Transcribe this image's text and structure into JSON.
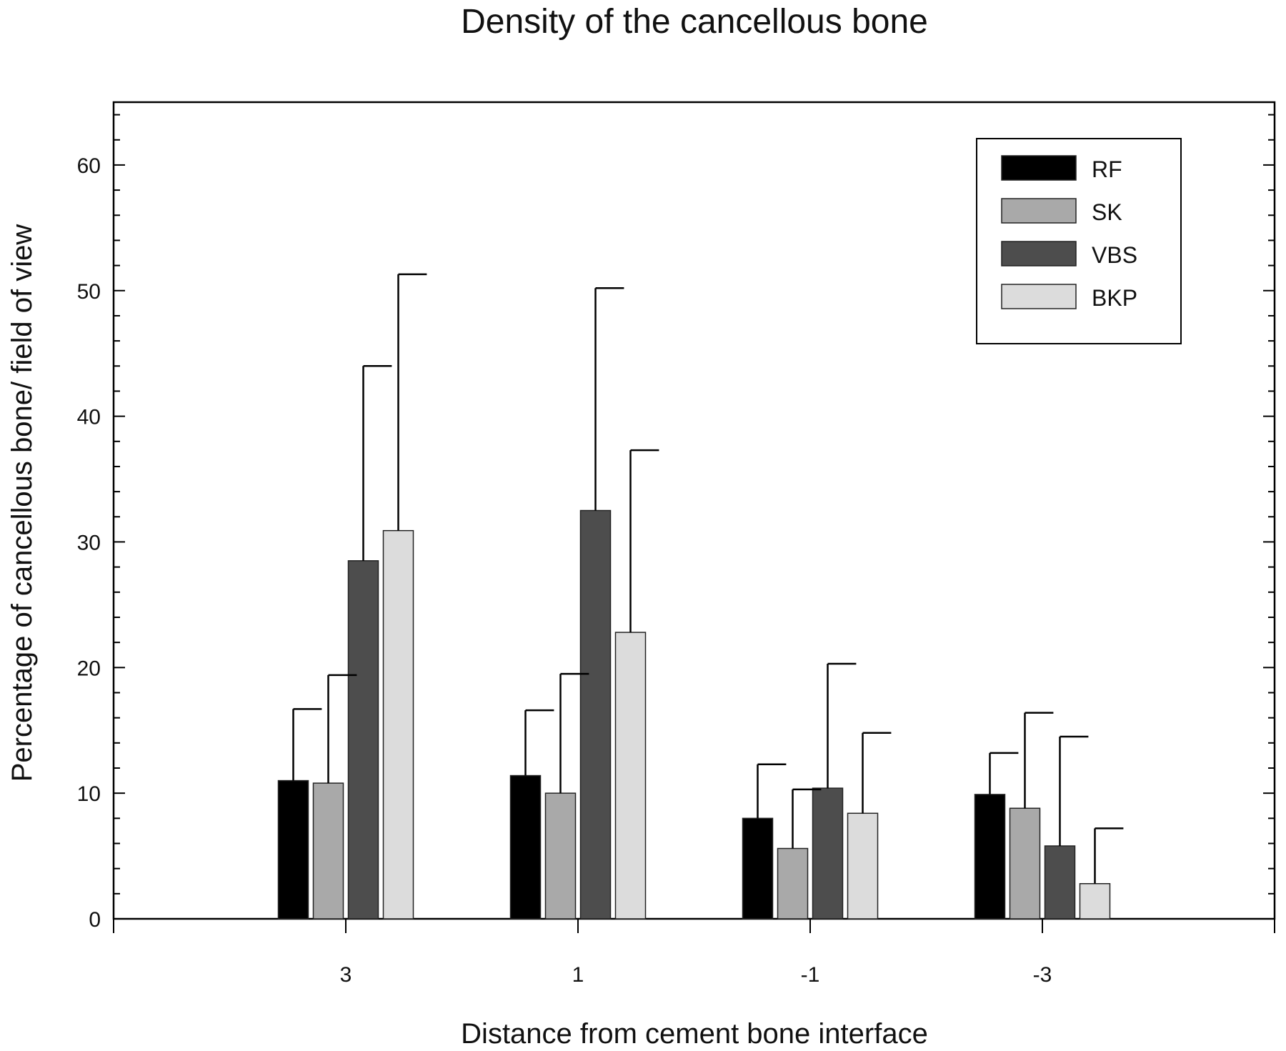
{
  "chart_data": {
    "type": "bar",
    "title": "Density of the cancellous bone",
    "xlabel": "Distance from cement bone interface",
    "ylabel": "Percentage of cancellous bone/ field of view",
    "categories": [
      "3",
      "1",
      "-1",
      "-3"
    ],
    "ylim": [
      0,
      65
    ],
    "yticks": [
      0,
      10,
      20,
      30,
      40,
      50,
      60
    ],
    "legend_position": "top-right",
    "grid": false,
    "error_bars": "upper",
    "series": [
      {
        "name": "RF",
        "color": "#000000",
        "values": [
          11.0,
          11.4,
          8.0,
          9.9
        ],
        "error": [
          5.7,
          5.2,
          4.3,
          3.3
        ]
      },
      {
        "name": "SK",
        "color": "#a9a9a9",
        "values": [
          10.8,
          10.0,
          5.6,
          8.8
        ],
        "error": [
          8.6,
          9.5,
          4.7,
          7.6
        ]
      },
      {
        "name": "VBS",
        "color": "#4d4d4d",
        "values": [
          28.5,
          32.5,
          10.4,
          5.8
        ],
        "error": [
          15.5,
          17.7,
          9.9,
          8.7
        ]
      },
      {
        "name": "BKP",
        "color": "#dcdcdc",
        "values": [
          30.9,
          22.8,
          8.4,
          2.8
        ],
        "error": [
          20.4,
          14.5,
          6.4,
          4.4
        ]
      }
    ]
  }
}
